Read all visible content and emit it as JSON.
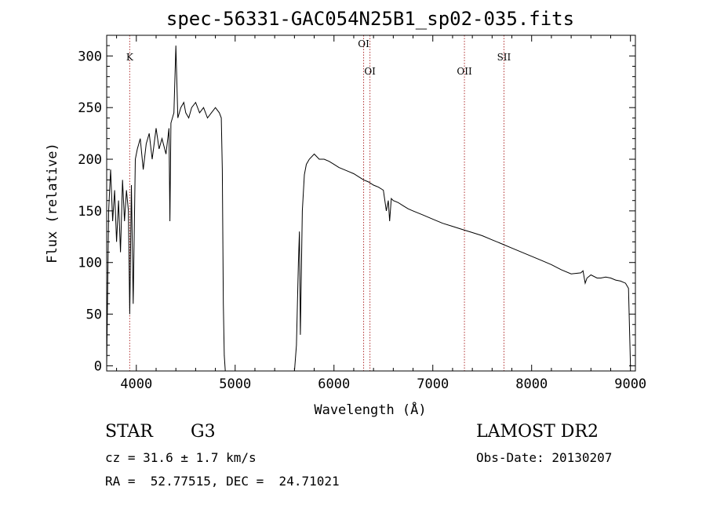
{
  "chart_data": {
    "type": "line",
    "title": "spec-56331-GAC054N25B1_sp02-035.fits",
    "xlabel": "Wavelength (Å)",
    "ylabel": "Flux (relative)",
    "xlim": [
      3700,
      9050
    ],
    "ylim": [
      -5,
      320
    ],
    "xticks": [
      4000,
      5000,
      6000,
      7000,
      8000,
      9000
    ],
    "yticks": [
      0,
      50,
      100,
      150,
      200,
      250,
      300
    ],
    "grid": false,
    "series": [
      {
        "x": [
          3700,
          3720,
          3740,
          3760,
          3780,
          3800,
          3820,
          3840,
          3860,
          3880,
          3900,
          3920,
          3933,
          3950,
          3968,
          3990,
          4010,
          4040,
          4070,
          4100,
          4130,
          4160,
          4200,
          4230,
          4260,
          4300,
          4330,
          4340,
          4350,
          4380,
          4400,
          4420,
          4450,
          4480,
          4500,
          4530,
          4560,
          4600,
          4640,
          4680,
          4720,
          4760,
          4800,
          4840,
          4860,
          4870,
          4880,
          4890,
          4900,
          5600,
          5620,
          5640,
          5650,
          5660,
          5680,
          5700,
          5720,
          5750,
          5800,
          5850,
          5900,
          5950,
          6000,
          6050,
          6100,
          6150,
          6200,
          6250,
          6300,
          6350,
          6400,
          6450,
          6500,
          6530,
          6550,
          6563,
          6580,
          6600,
          6650,
          6700,
          6750,
          6800,
          6900,
          7000,
          7100,
          7200,
          7300,
          7400,
          7500,
          7600,
          7700,
          7800,
          7900,
          8000,
          8100,
          8200,
          8300,
          8400,
          8498,
          8520,
          8542,
          8560,
          8600,
          8662,
          8700,
          8750,
          8800,
          8850,
          8900,
          8950,
          8980,
          9000
        ],
        "values": [
          0,
          150,
          190,
          140,
          170,
          120,
          160,
          110,
          180,
          140,
          170,
          150,
          50,
          175,
          60,
          200,
          210,
          220,
          190,
          215,
          225,
          200,
          230,
          210,
          220,
          205,
          230,
          140,
          235,
          245,
          310,
          240,
          250,
          255,
          245,
          240,
          250,
          255,
          245,
          250,
          240,
          245,
          250,
          245,
          240,
          190,
          60,
          10,
          -5,
          -5,
          20,
          100,
          130,
          30,
          150,
          185,
          195,
          200,
          205,
          200,
          200,
          198,
          195,
          192,
          190,
          188,
          186,
          183,
          180,
          178,
          175,
          173,
          170,
          150,
          160,
          140,
          162,
          160,
          158,
          155,
          152,
          150,
          146,
          142,
          138,
          135,
          132,
          129,
          126,
          122,
          118,
          114,
          110,
          106,
          102,
          98,
          93,
          89,
          90,
          92,
          80,
          85,
          88,
          85,
          85,
          86,
          85,
          83,
          82,
          80,
          75,
          0
        ]
      }
    ],
    "line_markers": [
      {
        "label": "K",
        "x": 3933
      },
      {
        "label": "OI",
        "x": 6300
      },
      {
        "label": "OI",
        "x": 6364
      },
      {
        "label": "OII",
        "x": 7320
      },
      {
        "label": "SII",
        "x": 7720
      }
    ]
  },
  "info": {
    "class": "STAR",
    "subclass": "G3",
    "survey": "LAMOST DR2",
    "redshift": "cz = 31.6 ± 1.7 km/s",
    "obs_date": "Obs-Date: 20130207",
    "coords": "RA =  52.77515, DEC =  24.71021"
  }
}
